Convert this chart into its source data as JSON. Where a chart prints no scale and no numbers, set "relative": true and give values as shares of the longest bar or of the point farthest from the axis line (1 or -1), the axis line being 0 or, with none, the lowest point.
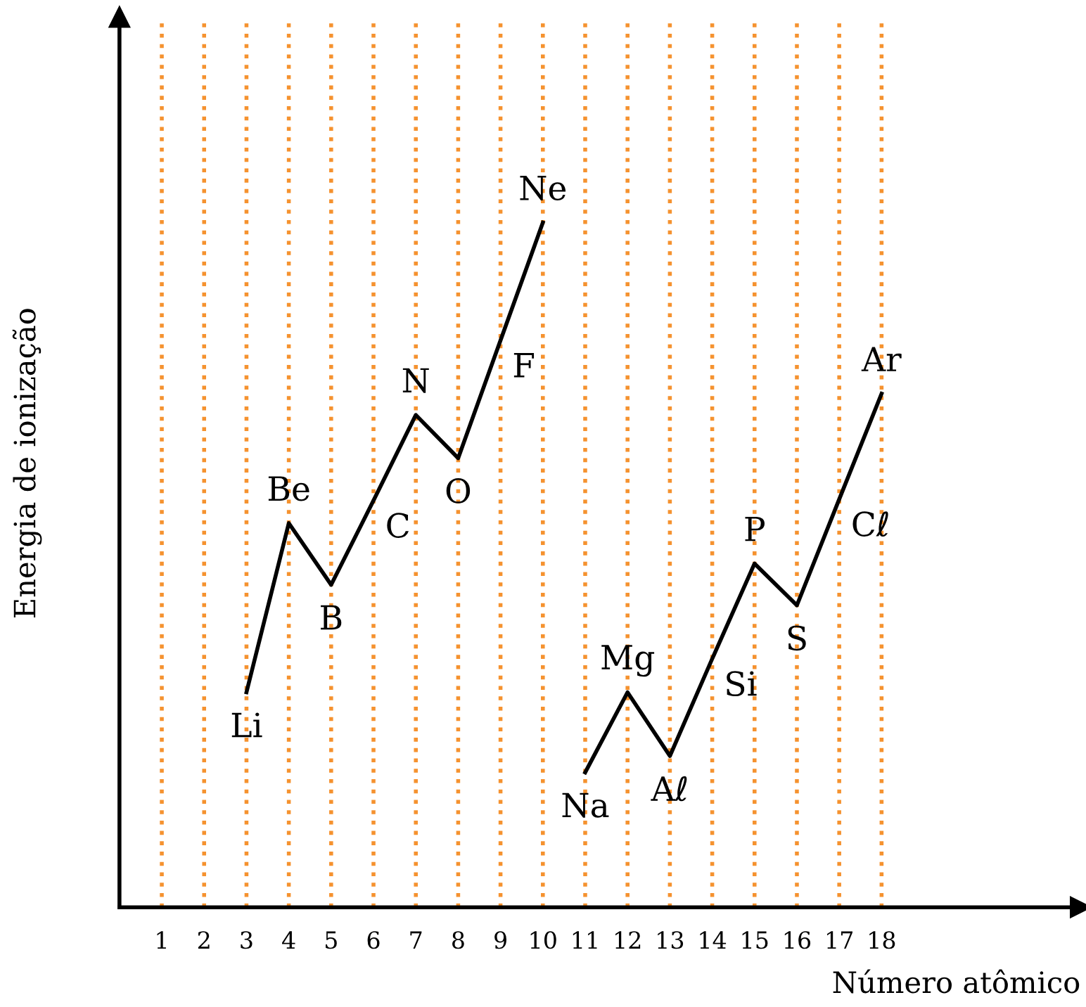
{
  "chart_data": {
    "type": "line",
    "relative": true,
    "xlabel": "Número atômico",
    "ylabel": "Energia de ionização",
    "xlim": [
      0,
      22.7
    ],
    "xticks": [
      1,
      2,
      3,
      4,
      5,
      6,
      7,
      8,
      9,
      10,
      11,
      12,
      13,
      14,
      15,
      16,
      17,
      18
    ],
    "tick_labels": "x",
    "grid": false,
    "marker": "none",
    "line_style": "solid",
    "series": [
      {
        "color": "#000000",
        "x": [
          3,
          4,
          5,
          6,
          7,
          8,
          9,
          10
        ],
        "values": [
          0.314,
          0.561,
          0.471,
          0.594,
          0.719,
          0.656,
          0.828,
          1
        ]
      },
      {
        "color": "#000000",
        "x": [
          11,
          12,
          13,
          14,
          15,
          16,
          17,
          18
        ],
        "values": [
          0.197,
          0.314,
          0.221,
          0.363,
          0.502,
          0.441,
          0.596,
          0.75
        ]
      }
    ],
    "annotations": [
      {
        "text": "Li",
        "x": 3,
        "y": 0.314
      },
      {
        "text": "Be",
        "x": 4,
        "y": 0.561
      },
      {
        "text": "B",
        "x": 5,
        "y": 0.471
      },
      {
        "text": "C",
        "x": 6,
        "y": 0.594
      },
      {
        "text": "N",
        "x": 7,
        "y": 0.719
      },
      {
        "text": "O",
        "x": 8,
        "y": 0.656
      },
      {
        "text": "F",
        "x": 9,
        "y": 0.828
      },
      {
        "text": "Ne",
        "x": 10,
        "y": 1
      },
      {
        "text": "Na",
        "x": 11,
        "y": 0.197
      },
      {
        "text": "Mg",
        "x": 12,
        "y": 0.314
      },
      {
        "text": "Aℓ",
        "x": 13,
        "y": 0.221
      },
      {
        "text": "Si",
        "x": 14,
        "y": 0.363
      },
      {
        "text": "P",
        "x": 15,
        "y": 0.502
      },
      {
        "text": "S",
        "x": 16,
        "y": 0.441
      },
      {
        "text": "Cℓ",
        "x": 17,
        "y": 0.596
      },
      {
        "text": "Ar",
        "x": 18,
        "y": 0.75
      }
    ],
    "ref_lines": [
      {
        "axis": "x",
        "value": 1,
        "color": "#f5922f",
        "line_style": "dotted"
      },
      {
        "axis": "x",
        "value": 2,
        "color": "#f5922f",
        "line_style": "dotted"
      },
      {
        "axis": "x",
        "value": 3,
        "color": "#f5922f",
        "line_style": "dotted"
      },
      {
        "axis": "x",
        "value": 4,
        "color": "#f5922f",
        "line_style": "dotted"
      },
      {
        "axis": "x",
        "value": 5,
        "color": "#f5922f",
        "line_style": "dotted"
      },
      {
        "axis": "x",
        "value": 6,
        "color": "#f5922f",
        "line_style": "dotted"
      },
      {
        "axis": "x",
        "value": 7,
        "color": "#f5922f",
        "line_style": "dotted"
      },
      {
        "axis": "x",
        "value": 8,
        "color": "#f5922f",
        "line_style": "dotted"
      },
      {
        "axis": "x",
        "value": 9,
        "color": "#f5922f",
        "line_style": "dotted"
      },
      {
        "axis": "x",
        "value": 10,
        "color": "#f5922f",
        "line_style": "dotted"
      },
      {
        "axis": "x",
        "value": 11,
        "color": "#f5922f",
        "line_style": "dotted"
      },
      {
        "axis": "x",
        "value": 12,
        "color": "#f5922f",
        "line_style": "dotted"
      },
      {
        "axis": "x",
        "value": 13,
        "color": "#f5922f",
        "line_style": "dotted"
      },
      {
        "axis": "x",
        "value": 14,
        "color": "#f5922f",
        "line_style": "dotted"
      },
      {
        "axis": "x",
        "value": 15,
        "color": "#f5922f",
        "line_style": "dotted"
      },
      {
        "axis": "x",
        "value": 16,
        "color": "#f5922f",
        "line_style": "dotted"
      },
      {
        "axis": "x",
        "value": 17,
        "color": "#f5922f",
        "line_style": "dotted"
      },
      {
        "axis": "x",
        "value": 18,
        "color": "#f5922f",
        "line_style": "dotted"
      }
    ]
  }
}
